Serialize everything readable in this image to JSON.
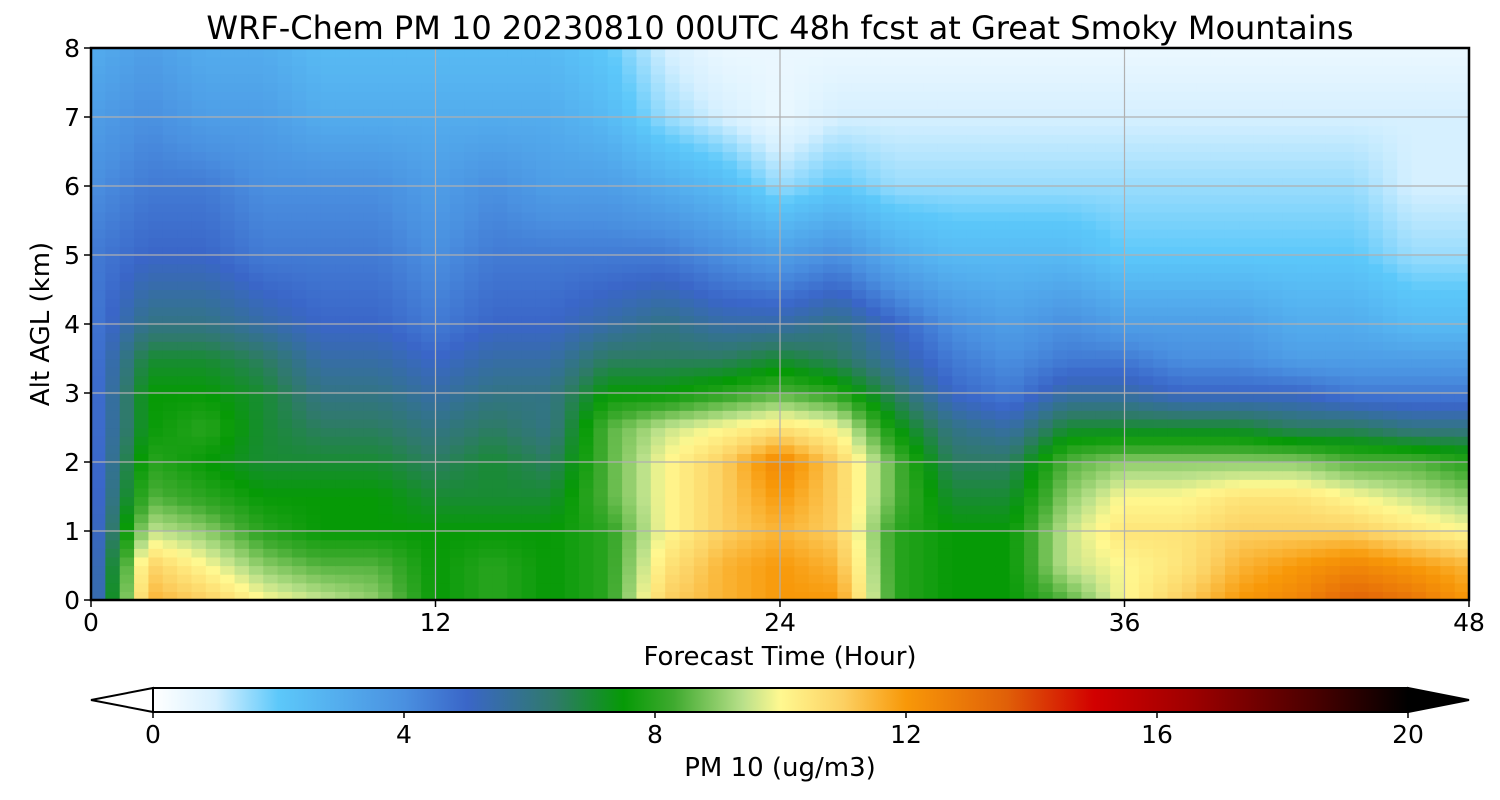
{
  "chart_data": {
    "type": "heatmap",
    "title": "WRF-Chem PM 10  20230810 00UTC 48h fcst at Great Smoky Mountains",
    "xlabel": "Forecast Time (Hour)",
    "ylabel": "Alt AGL (km)",
    "xlim": [
      0,
      48
    ],
    "ylim": [
      0,
      8
    ],
    "x_ticks": [
      0,
      12,
      24,
      36,
      48
    ],
    "y_ticks": [
      0,
      1,
      2,
      3,
      4,
      5,
      6,
      7,
      8
    ],
    "grid": true,
    "colorbar": {
      "label": "PM 10  (ug/m3)",
      "range": [
        0,
        20
      ],
      "ticks": [
        0,
        4,
        8,
        12,
        16,
        20
      ],
      "extend": "both",
      "placement": "bottom"
    },
    "x": [
      0,
      2,
      4,
      6,
      8,
      10,
      12,
      14,
      16,
      18,
      20,
      22,
      24,
      26,
      28,
      30,
      32,
      34,
      36,
      38,
      40,
      42,
      44,
      46,
      48
    ],
    "y": [
      0,
      0.5,
      1,
      1.5,
      2,
      2.5,
      3,
      3.5,
      4,
      5,
      6,
      7,
      8
    ],
    "z": [
      [
        4.5,
        11.5,
        11,
        10,
        9.5,
        9,
        7.5,
        8,
        7.5,
        8,
        11,
        11.5,
        12,
        12,
        8,
        7.5,
        7.5,
        8.5,
        10,
        11,
        12,
        12.5,
        13.5,
        13,
        12
      ],
      [
        4.5,
        11,
        10,
        9,
        8.5,
        8.5,
        7.5,
        8,
        7.5,
        8,
        10.5,
        11.5,
        12,
        11.5,
        8,
        7.5,
        7.5,
        9.5,
        10,
        10.5,
        11.5,
        12,
        12.5,
        12,
        11.5
      ],
      [
        4.5,
        9.5,
        9,
        8,
        7.5,
        7.5,
        7.5,
        7.5,
        7.5,
        8,
        10,
        11,
        11.5,
        11,
        8,
        7.5,
        7.5,
        9.5,
        10.5,
        10.5,
        11,
        11,
        11,
        10.5,
        10
      ],
      [
        4.5,
        8.5,
        8,
        7.5,
        7.5,
        7.5,
        7,
        7,
        7,
        8.5,
        10,
        11,
        12,
        11,
        8.5,
        7,
        7,
        9,
        10,
        10,
        10.5,
        10.5,
        10,
        9.5,
        9
      ],
      [
        4.5,
        8,
        7.5,
        7,
        7,
        7,
        6.5,
        7,
        6.5,
        8.5,
        10,
        11,
        12.5,
        11,
        8.5,
        6.5,
        6.5,
        8.5,
        9,
        9,
        9,
        9,
        8.5,
        8.5,
        8
      ],
      [
        4.5,
        7.5,
        8,
        7,
        6.5,
        6.5,
        6,
        6.5,
        6,
        8.5,
        9.5,
        10,
        10.5,
        10,
        7.5,
        6,
        5.5,
        7,
        7,
        7,
        7,
        6.5,
        6.5,
        6,
        6
      ],
      [
        4.5,
        7.5,
        7.5,
        7,
        6,
        6,
        5.5,
        6,
        6,
        7.5,
        7.5,
        8,
        8.5,
        8,
        6.5,
        5,
        4.5,
        5.5,
        5.5,
        5,
        5,
        5,
        4.5,
        4.5,
        4.5
      ],
      [
        4.5,
        7,
        7,
        6.5,
        5.5,
        5.5,
        5,
        5.5,
        5.5,
        6.5,
        6.5,
        6.5,
        7,
        6.5,
        5.5,
        4.5,
        4,
        4.5,
        4.5,
        4,
        4,
        3.5,
        3.5,
        3.5,
        3.5
      ],
      [
        4.5,
        6,
        6,
        5.5,
        5,
        5,
        4.5,
        5,
        5,
        5.5,
        6,
        5.5,
        5.5,
        6,
        5,
        4,
        3.5,
        4,
        3.5,
        3.5,
        3.5,
        3,
        3,
        2.5,
        2.5
      ],
      [
        4.5,
        5,
        5,
        4.5,
        4.5,
        4.5,
        4,
        4.5,
        4.5,
        4.5,
        4.5,
        4,
        3.5,
        4,
        3,
        2.5,
        2.5,
        2.5,
        2,
        2,
        2,
        2,
        2,
        1.5,
        1.5
      ],
      [
        4,
        4.5,
        4.5,
        4,
        4,
        4,
        3.5,
        4,
        3.5,
        3.5,
        3,
        2.5,
        1.5,
        2,
        1.5,
        1.5,
        1.5,
        1.5,
        1.5,
        1.5,
        1.5,
        1.5,
        1.5,
        1,
        1
      ],
      [
        3.5,
        4,
        3.5,
        3.5,
        3,
        3,
        3,
        3,
        3,
        2.5,
        1.5,
        1,
        0.5,
        1,
        1,
        1,
        1,
        1,
        1,
        1,
        1,
        1,
        1,
        1,
        1
      ],
      [
        3,
        3.5,
        3,
        3,
        2.5,
        2.5,
        2.5,
        2.5,
        2.5,
        2,
        1,
        0.5,
        0.5,
        0.5,
        0.5,
        0.5,
        0.5,
        0.5,
        0.5,
        0.5,
        0.5,
        0.5,
        0.5,
        0.5,
        0.5
      ]
    ]
  }
}
